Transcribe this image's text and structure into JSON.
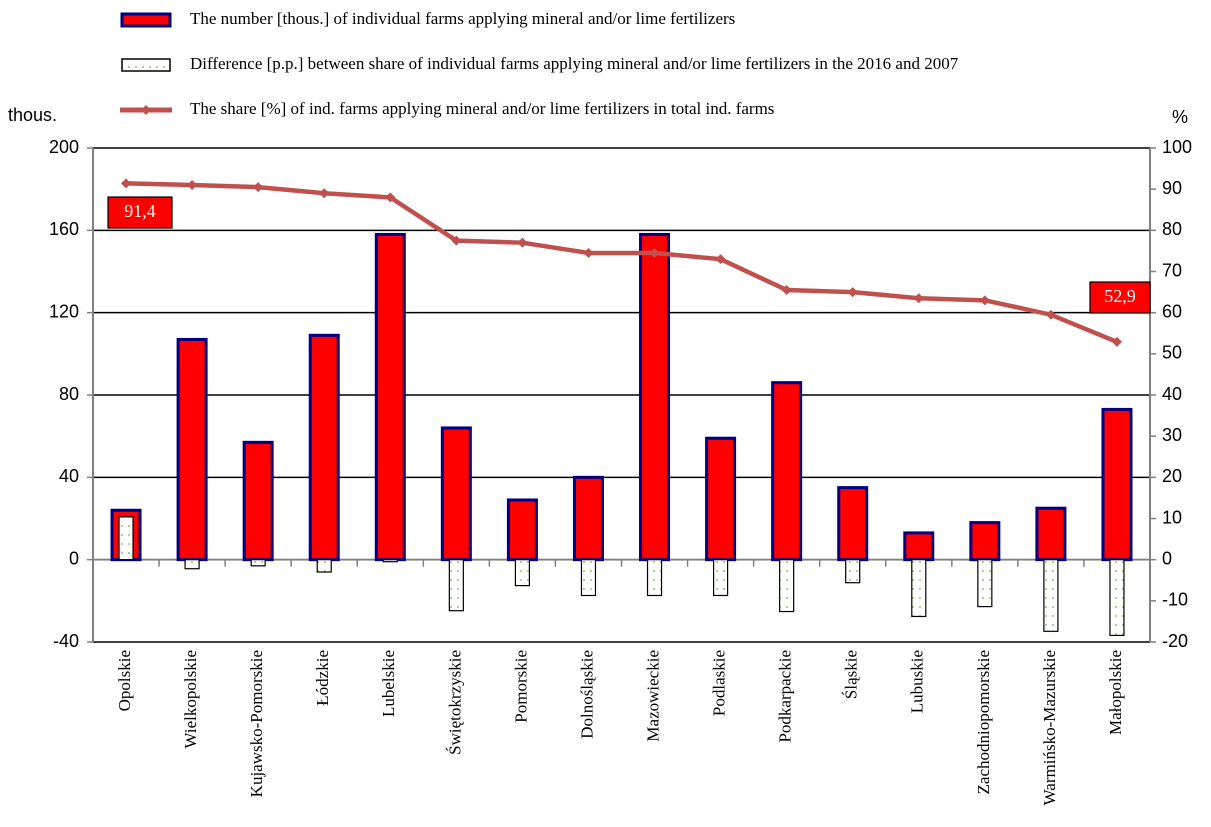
{
  "chart_data": {
    "type": "bar_line",
    "y_label": "thous.",
    "y2_label": "%",
    "categories": [
      "Opolskie",
      "Wielkopolskie",
      "Kujawsko-Pomorskie",
      "Łódzkie",
      "Lubelskie",
      "Świętokrzyskie",
      "Pomorskie",
      "Dolnośląskie",
      "Mazowieckie",
      "Podlaskie",
      "Podkarpackie",
      "Śląskie",
      "Lubuskie",
      "Zachodniopomorskie",
      "Warmińsko-Mazurskie",
      "Małopolskie"
    ],
    "series": [
      {
        "name": "The number [thous.] of individual farms applying mineral and/or lime fertilizers",
        "type": "bar",
        "color": "#ff0000",
        "edge_color": "#000080",
        "axis": "y",
        "values": [
          24,
          107,
          57,
          109,
          158,
          64,
          29,
          40,
          158,
          59,
          86,
          35,
          13,
          18,
          25,
          73
        ]
      },
      {
        "name": "Difference [p.p.] between share of individual farms applying mineral and/or lime fertilizers in the 2016 and 2007",
        "type": "bar",
        "color": "#ffffff",
        "hatch_color": "#66bb44",
        "axis": "y2",
        "values": [
          10.4,
          -2.2,
          -1.5,
          -3,
          -0.5,
          -12.4,
          -6.3,
          -8.7,
          -8.7,
          -8.7,
          -12.6,
          -5.6,
          -13.8,
          -11.4,
          -17.4,
          -18.4
        ]
      },
      {
        "name": "The share [%] of ind. farms applying mineral and/or lime fertilizers in total ind. farms",
        "type": "line",
        "color": "#c0504d",
        "axis": "y2",
        "values": [
          91.4,
          91,
          90.5,
          89,
          88,
          77.5,
          77,
          74.5,
          74.5,
          73,
          65.5,
          65,
          63.5,
          63,
          59.5,
          52.9
        ],
        "value_labels": [
          "91,4",
          null,
          null,
          null,
          null,
          null,
          null,
          null,
          null,
          null,
          null,
          null,
          null,
          null,
          null,
          "52,9"
        ]
      }
    ],
    "ylim": [
      -40,
      200
    ],
    "yticks": [
      -40,
      0,
      40,
      80,
      120,
      160,
      200
    ],
    "y2lim": [
      -20,
      100
    ],
    "y2ticks": [
      -20,
      -10,
      0,
      10,
      20,
      30,
      40,
      50,
      60,
      70,
      80,
      90,
      100
    ],
    "grid": true
  }
}
